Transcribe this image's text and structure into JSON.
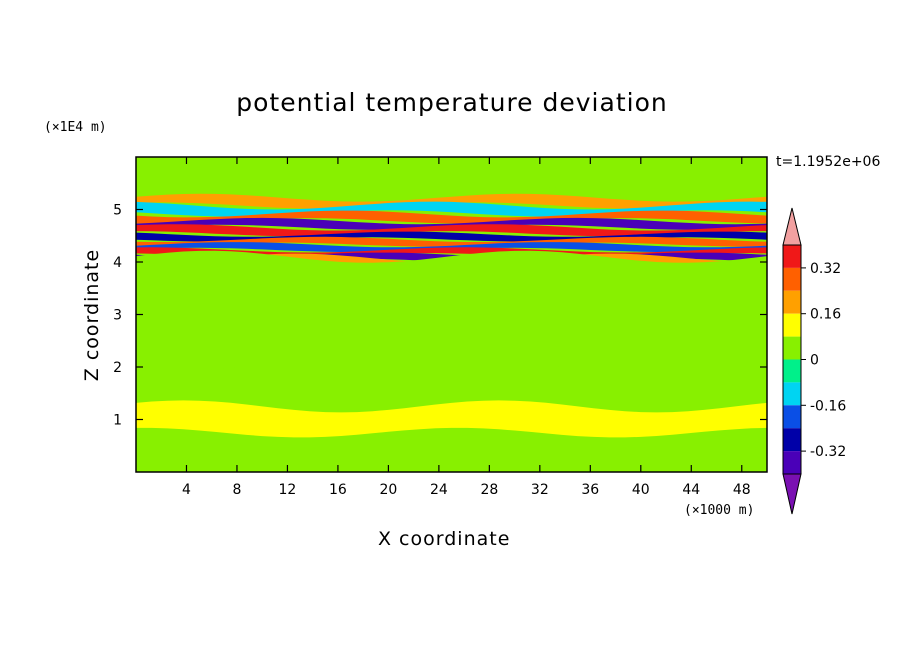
{
  "chart_data": {
    "type": "heatmap",
    "title": "potential temperature deviation",
    "xlabel": "X coordinate",
    "ylabel": "Z coordinate",
    "x_unit": "(×1000 m)",
    "y_unit": "(×1E4 m)",
    "time_label": "t=1.1952e+06",
    "xlim": [
      0,
      50
    ],
    "ylim": [
      0,
      6
    ],
    "x_ticks": [
      "4",
      "8",
      "12",
      "16",
      "20",
      "24",
      "28",
      "32",
      "36",
      "40",
      "44",
      "48"
    ],
    "y_ticks": [
      "1",
      "2",
      "3",
      "4",
      "5"
    ],
    "colorbar": {
      "levels": [
        -0.48,
        -0.4,
        -0.32,
        -0.24,
        -0.16,
        -0.08,
        0,
        0.08,
        0.16,
        0.24,
        0.32,
        0.4,
        0.48
      ],
      "colors": [
        "#7a10b2",
        "#4a00b8",
        "#0000a8",
        "#0a4fe6",
        "#00d4f2",
        "#00f08a",
        "#88f000",
        "#ffff00",
        "#ffa000",
        "#ff6000",
        "#f01818",
        "#f2a0a0"
      ],
      "tick_labels": [
        "0.32",
        "0.16",
        "0",
        "-0.16",
        "-0.32"
      ]
    },
    "bands": [
      {
        "z": 5.6,
        "level": 0
      },
      {
        "z": 5.3,
        "level": 0.04
      },
      {
        "z": 5.15,
        "level": 0.2
      },
      {
        "z": 5.0,
        "level": -0.1
      },
      {
        "z": 4.85,
        "level": 0.3
      },
      {
        "z": 4.72,
        "level": -0.38
      },
      {
        "z": 4.6,
        "level": 0.35
      },
      {
        "z": 4.48,
        "level": -0.3
      },
      {
        "z": 4.38,
        "level": 0.28
      },
      {
        "z": 4.28,
        "level": -0.2
      },
      {
        "z": 4.18,
        "level": 0.32
      },
      {
        "z": 4.08,
        "level": -0.36
      },
      {
        "z": 3.98,
        "level": 0.2
      },
      {
        "z": 3.8,
        "level": 0.0
      },
      {
        "z": 3.2,
        "level": 0.04
      },
      {
        "z": 2.4,
        "level": 0.0
      },
      {
        "z": 1.6,
        "level": 0.04
      },
      {
        "z": 1.0,
        "level": 0.12
      },
      {
        "z": 0.5,
        "level": 0.0
      }
    ]
  }
}
